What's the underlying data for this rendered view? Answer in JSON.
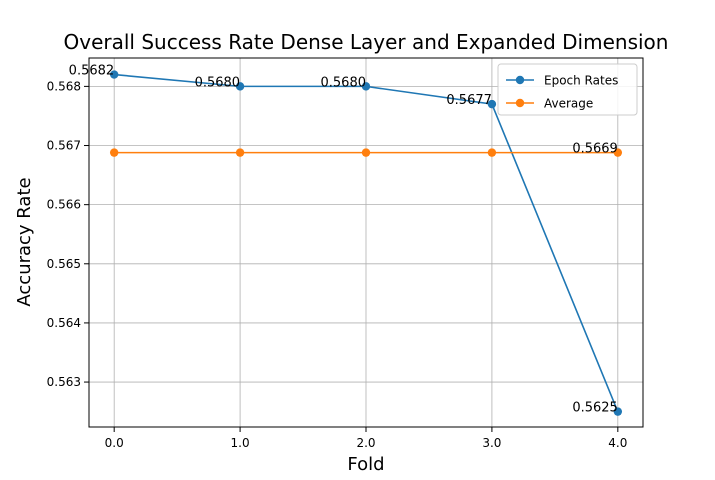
{
  "chart_data": {
    "type": "line",
    "title": "Overall Success Rate Dense Layer and Expanded Dimension",
    "xlabel": "Fold",
    "ylabel": "Accuracy Rate",
    "x": [
      0,
      1,
      2,
      3,
      4
    ],
    "x_tick_labels": [
      "0.0",
      "1.0",
      "2.0",
      "3.0",
      "4.0"
    ],
    "y_ticks": [
      0.563,
      0.564,
      0.565,
      0.566,
      0.567,
      0.568
    ],
    "y_tick_labels": [
      "0.563",
      "0.564",
      "0.565",
      "0.566",
      "0.567",
      "0.568"
    ],
    "xlim": [
      -0.2,
      4.2
    ],
    "ylim": [
      0.56224,
      0.56848
    ],
    "grid": true,
    "legend_position": "upper-right",
    "series": [
      {
        "name": "Epoch Rates",
        "color": "#1f77b4",
        "values": [
          0.5682,
          0.568,
          0.568,
          0.5677,
          0.5625
        ],
        "point_labels": [
          "0.5682",
          "0.5680",
          "0.5680",
          "0.5677",
          "0.5625"
        ]
      },
      {
        "name": "Average",
        "color": "#ff7f0e",
        "values": [
          0.56688,
          0.56688,
          0.56688,
          0.56688,
          0.56688
        ],
        "point_labels": [
          "",
          "",
          "",
          "",
          "0.5669"
        ]
      }
    ]
  }
}
